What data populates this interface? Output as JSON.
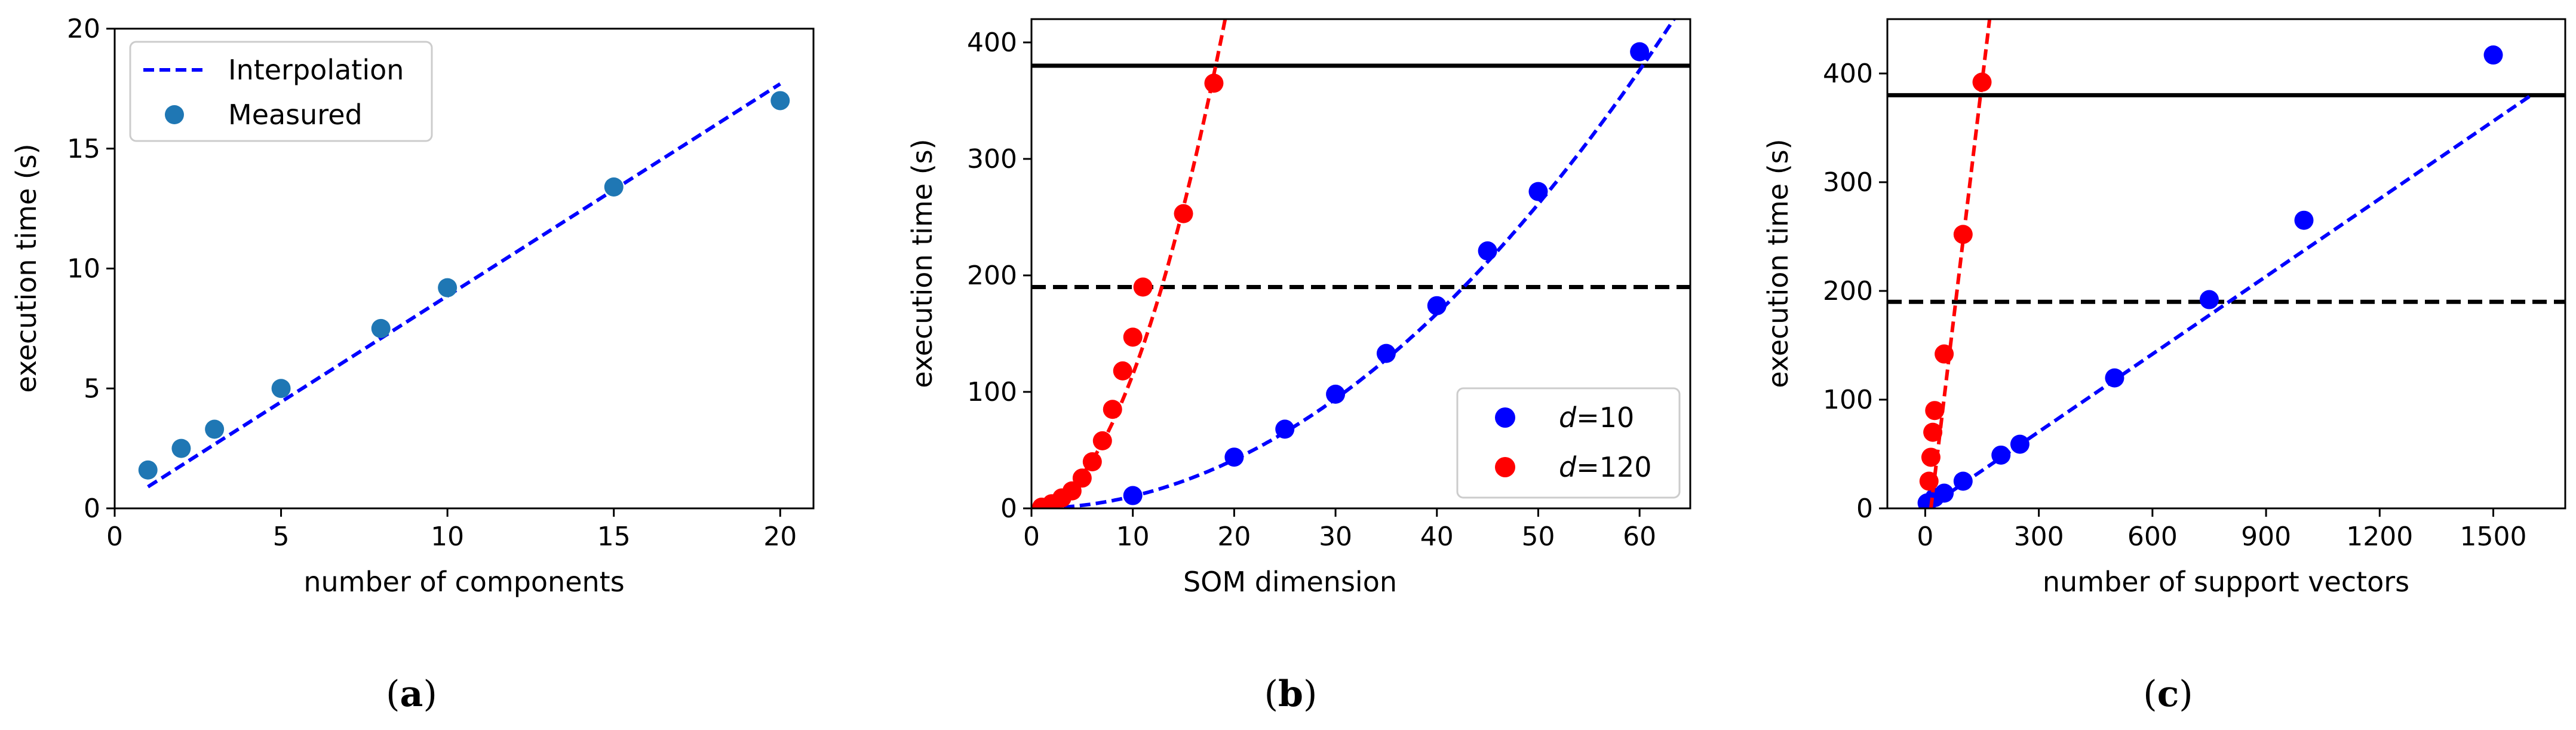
{
  "figure": {
    "captions": [
      "(a)",
      "(b)",
      "(c)"
    ],
    "caption_parts": [
      {
        "open": "(",
        "letter": "a",
        "close": ")"
      },
      {
        "open": "(",
        "letter": "b",
        "close": ")"
      },
      {
        "open": "(",
        "letter": "c",
        "close": ")"
      }
    ]
  },
  "chart_data": [
    {
      "type": "line+scatter",
      "xlabel": "number of components",
      "ylabel": "execution time (s)",
      "xlim": [
        0,
        21
      ],
      "ylim": [
        0,
        20
      ],
      "xticks": [
        0,
        5,
        10,
        15,
        20
      ],
      "yticks": [
        0,
        5,
        10,
        15,
        20
      ],
      "legend": {
        "position": "top-left",
        "entries": [
          "Interpolation",
          "Measured"
        ]
      },
      "colors": {
        "measured": "#1f77b4",
        "interp": "#0000ff"
      },
      "measured": {
        "x": [
          1,
          2,
          3,
          5,
          8,
          10,
          15,
          20
        ],
        "y": [
          1.6,
          2.5,
          3.3,
          5.0,
          7.5,
          9.2,
          13.4,
          17.0
        ]
      },
      "interpolation": {
        "x": [
          1,
          20
        ],
        "y": [
          0.9,
          17.7
        ]
      }
    },
    {
      "type": "line+scatter",
      "xlabel": "SOM dimension",
      "ylabel": "execution time (s)",
      "xlim": [
        0,
        65
      ],
      "ylim": [
        0,
        420
      ],
      "xticks": [
        0,
        10,
        20,
        30,
        40,
        50,
        60
      ],
      "yticks": [
        0,
        100,
        200,
        300,
        400
      ],
      "legend": {
        "position": "bottom-right",
        "entries": [
          {
            "var": "d",
            "eq": "=10"
          },
          {
            "var": "d",
            "eq": "=120"
          }
        ]
      },
      "hlines": [
        {
          "y": 380,
          "style": "solid"
        },
        {
          "y": 190,
          "style": "dashed"
        }
      ],
      "series": [
        {
          "name": "d=10",
          "color": "#0000ff",
          "x": [
            10,
            20,
            25,
            30,
            35,
            40,
            45,
            50,
            60
          ],
          "y": [
            11,
            44,
            68,
            98,
            133,
            174,
            221,
            272,
            392
          ],
          "fit": {
            "form": "a*x^2",
            "a": 0.1045,
            "x_start": 0
          }
        },
        {
          "name": "d=120",
          "color": "#ff0000",
          "x": [
            1,
            2,
            3,
            4,
            5,
            6,
            7,
            8,
            9,
            10,
            11,
            15,
            18
          ],
          "y": [
            1,
            4,
            9,
            15,
            26,
            40,
            58,
            85,
            118,
            147,
            190,
            253,
            365
          ],
          "fit": {
            "form": "a*x^2",
            "a": 1.15,
            "x_start": 0
          }
        }
      ]
    },
    {
      "type": "line+scatter",
      "xlabel": "number of support vectors",
      "ylabel": "execution time (s)",
      "xlim": [
        -100,
        1690
      ],
      "ylim": [
        0,
        450
      ],
      "xticks": [
        0,
        300,
        600,
        900,
        1200,
        1500
      ],
      "yticks": [
        0,
        100,
        200,
        300,
        400
      ],
      "hlines": [
        {
          "y": 380,
          "style": "solid"
        },
        {
          "y": 190,
          "style": "dashed"
        }
      ],
      "series": [
        {
          "name": "blue",
          "color": "#0000ff",
          "x": [
            5,
            25,
            50,
            100,
            200,
            250,
            500,
            750,
            1000,
            1500
          ],
          "y": [
            5,
            10,
            14,
            25,
            49,
            59,
            120,
            192,
            265,
            417
          ],
          "fit": {
            "x": [
              25,
              1600
            ],
            "y": [
              5,
              380
            ]
          }
        },
        {
          "name": "red",
          "color": "#ff0000",
          "x": [
            10,
            15,
            20,
            25,
            50,
            100,
            150
          ],
          "y": [
            25,
            47,
            70,
            90,
            142,
            252,
            392
          ],
          "fit": {
            "x": [
              15,
              170
            ],
            "y": [
              0,
              450
            ]
          }
        }
      ]
    }
  ]
}
